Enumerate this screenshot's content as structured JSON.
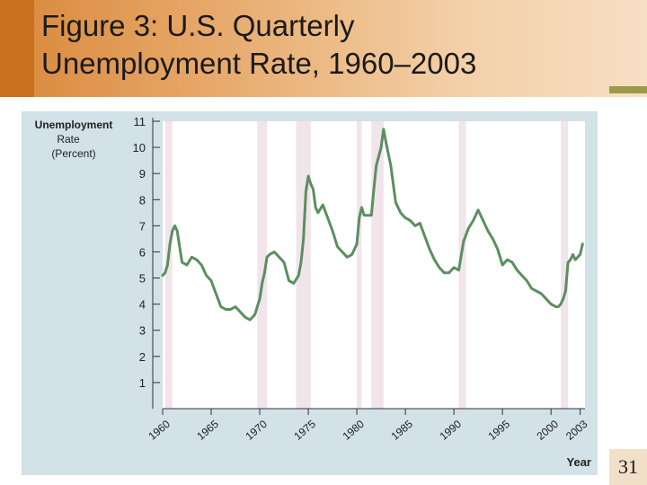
{
  "title": {
    "line1": "Figure 3:  U.S. Quarterly",
    "line2": "Unemployment Rate, 1960–2003"
  },
  "page_number": "31",
  "colors": {
    "line": "#5b8f5f",
    "recession": "#f1e4ea",
    "panel": "#d3e1e8",
    "plot_bg": "#ffffff"
  },
  "chart_data": {
    "type": "line",
    "title": "Figure 3:  U.S. Quarterly Unemployment Rate, 1960–2003",
    "ylabel_lines": [
      "Unemployment",
      "Rate",
      "(Percent)"
    ],
    "xlabel": "Year",
    "ylim": [
      0,
      11
    ],
    "xlim": [
      1960,
      2003.5
    ],
    "y_ticks": [
      1,
      2,
      3,
      4,
      5,
      6,
      7,
      8,
      9,
      10,
      11
    ],
    "y_tick_labels": [
      "1",
      "2",
      "3",
      "4",
      "5",
      "6",
      "7",
      "8",
      "9",
      "10",
      "11"
    ],
    "x_ticks": [
      1960,
      1965,
      1970,
      1975,
      1980,
      1985,
      1990,
      1995,
      2000,
      2003
    ],
    "x_tick_labels": [
      "1960",
      "1965",
      "1970",
      "1975",
      "1980",
      "1985",
      "1990",
      "1995",
      "2000",
      "2003"
    ],
    "grid": false,
    "recessions": [
      [
        1960.25,
        1961.0
      ],
      [
        1969.75,
        1970.75
      ],
      [
        1973.75,
        1975.25
      ],
      [
        1980.0,
        1980.5
      ],
      [
        1981.5,
        1982.75
      ],
      [
        1990.5,
        1991.25
      ],
      [
        2001.0,
        2001.75
      ]
    ],
    "series": [
      {
        "x": [
          1960.0,
          1960.25,
          1960.5,
          1960.75,
          1961.0,
          1961.25,
          1961.5,
          1961.75,
          1962.0,
          1962.5,
          1963.0,
          1963.5,
          1964.0,
          1964.5,
          1965.0,
          1965.5,
          1966.0,
          1966.5,
          1967.0,
          1967.5,
          1968.0,
          1968.5,
          1969.0,
          1969.5,
          1970.0,
          1970.25,
          1970.5,
          1970.75,
          1971.0,
          1971.5,
          1972.0,
          1972.5,
          1973.0,
          1973.5,
          1974.0,
          1974.25,
          1974.5,
          1974.75,
          1975.0,
          1975.25,
          1975.5,
          1975.75,
          1976.0,
          1976.5,
          1977.0,
          1977.5,
          1978.0,
          1978.5,
          1979.0,
          1979.5,
          1980.0,
          1980.25,
          1980.5,
          1980.75,
          1981.0,
          1981.5,
          1981.75,
          1982.0,
          1982.5,
          1982.75,
          1983.0,
          1983.5,
          1984.0,
          1984.5,
          1985.0,
          1985.5,
          1986.0,
          1986.5,
          1987.0,
          1987.5,
          1988.0,
          1988.5,
          1989.0,
          1989.5,
          1990.0,
          1990.5,
          1991.0,
          1991.5,
          1992.0,
          1992.5,
          1993.0,
          1993.5,
          1994.0,
          1994.5,
          1995.0,
          1995.5,
          1996.0,
          1996.5,
          1997.0,
          1997.5,
          1998.0,
          1998.5,
          1999.0,
          1999.5,
          2000.0,
          2000.5,
          2000.75,
          2001.0,
          2001.25,
          2001.5,
          2001.75,
          2002.0,
          2002.25,
          2002.5,
          2002.75,
          2003.0,
          2003.25
        ],
        "values": [
          5.1,
          5.2,
          5.5,
          6.3,
          6.8,
          7.0,
          6.8,
          6.2,
          5.6,
          5.5,
          5.8,
          5.7,
          5.5,
          5.1,
          4.9,
          4.4,
          3.9,
          3.8,
          3.8,
          3.9,
          3.7,
          3.5,
          3.4,
          3.6,
          4.2,
          4.8,
          5.2,
          5.8,
          5.9,
          6.0,
          5.8,
          5.6,
          4.9,
          4.8,
          5.1,
          5.6,
          6.5,
          8.3,
          8.9,
          8.6,
          8.4,
          7.7,
          7.5,
          7.8,
          7.3,
          6.8,
          6.2,
          6.0,
          5.8,
          5.9,
          6.3,
          7.3,
          7.7,
          7.4,
          7.4,
          7.4,
          8.4,
          9.3,
          10.0,
          10.7,
          10.2,
          9.3,
          7.9,
          7.5,
          7.3,
          7.2,
          7.0,
          7.1,
          6.6,
          6.1,
          5.7,
          5.4,
          5.2,
          5.2,
          5.4,
          5.3,
          6.4,
          6.9,
          7.2,
          7.6,
          7.2,
          6.8,
          6.5,
          6.1,
          5.5,
          5.7,
          5.6,
          5.3,
          5.1,
          4.9,
          4.6,
          4.5,
          4.4,
          4.2,
          4.0,
          3.9,
          3.9,
          4.0,
          4.2,
          4.5,
          5.6,
          5.7,
          5.9,
          5.7,
          5.8,
          5.9,
          6.3
        ]
      }
    ]
  }
}
